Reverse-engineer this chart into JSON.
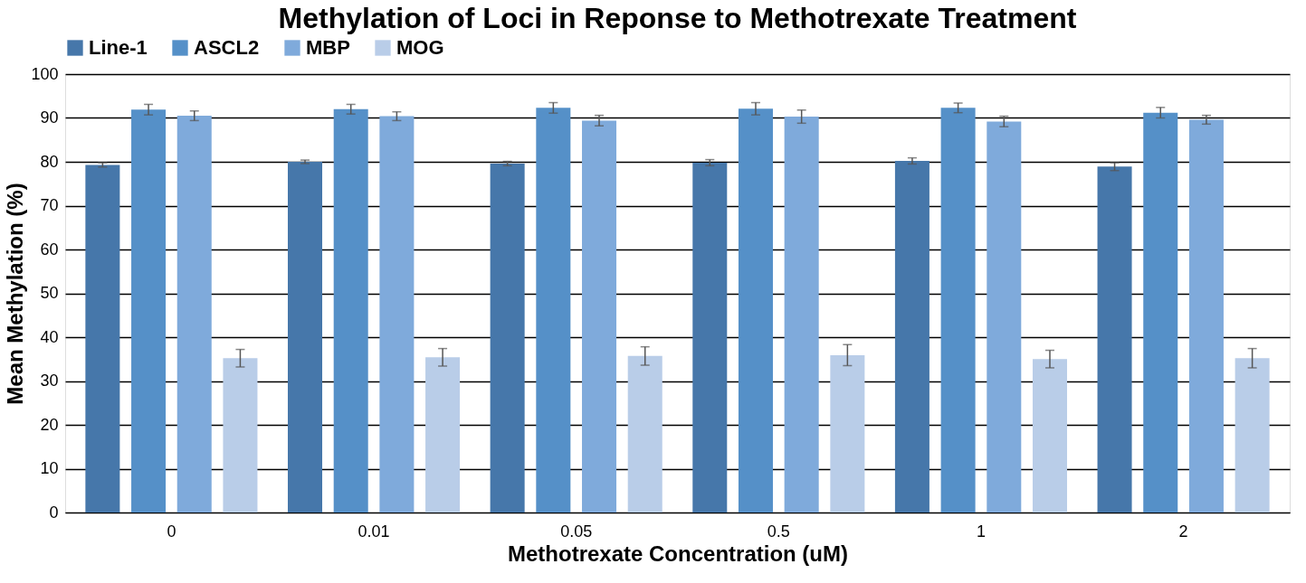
{
  "chart_data": {
    "type": "bar",
    "title": "Methylation of Loci in Reponse to Methotrexate Treatment",
    "xlabel": "Methotrexate Concentration (uM)",
    "ylabel": "Mean Methylation (%)",
    "categories": [
      "0",
      "0.01",
      "0.05",
      "0.5",
      "1",
      "2"
    ],
    "series": [
      {
        "name": "Line-1",
        "color": "#4677aa",
        "values": [
          79.3,
          80.0,
          79.6,
          79.8,
          80.2,
          78.9
        ],
        "errors": [
          0.5,
          0.4,
          0.5,
          0.7,
          0.7,
          0.9
        ]
      },
      {
        "name": "ASCL2",
        "color": "#5590c8",
        "values": [
          91.9,
          92.0,
          92.3,
          92.1,
          92.3,
          91.2
        ],
        "errors": [
          1.2,
          1.1,
          1.2,
          1.4,
          1.1,
          1.2
        ]
      },
      {
        "name": "MBP",
        "color": "#7faadb",
        "values": [
          90.5,
          90.4,
          89.4,
          90.3,
          89.2,
          89.6
        ],
        "errors": [
          1.1,
          1.0,
          1.2,
          1.5,
          1.2,
          1.0
        ]
      },
      {
        "name": "MOG",
        "color": "#b9cde8",
        "values": [
          35.2,
          35.4,
          35.7,
          35.9,
          35.0,
          35.2
        ],
        "errors": [
          2.0,
          2.0,
          2.1,
          2.4,
          2.0,
          2.2
        ]
      }
    ],
    "ylim": [
      0,
      100
    ],
    "yticks": [
      0,
      10,
      20,
      30,
      40,
      50,
      60,
      70,
      80,
      90,
      100
    ],
    "grid": "y",
    "legend": "top"
  }
}
